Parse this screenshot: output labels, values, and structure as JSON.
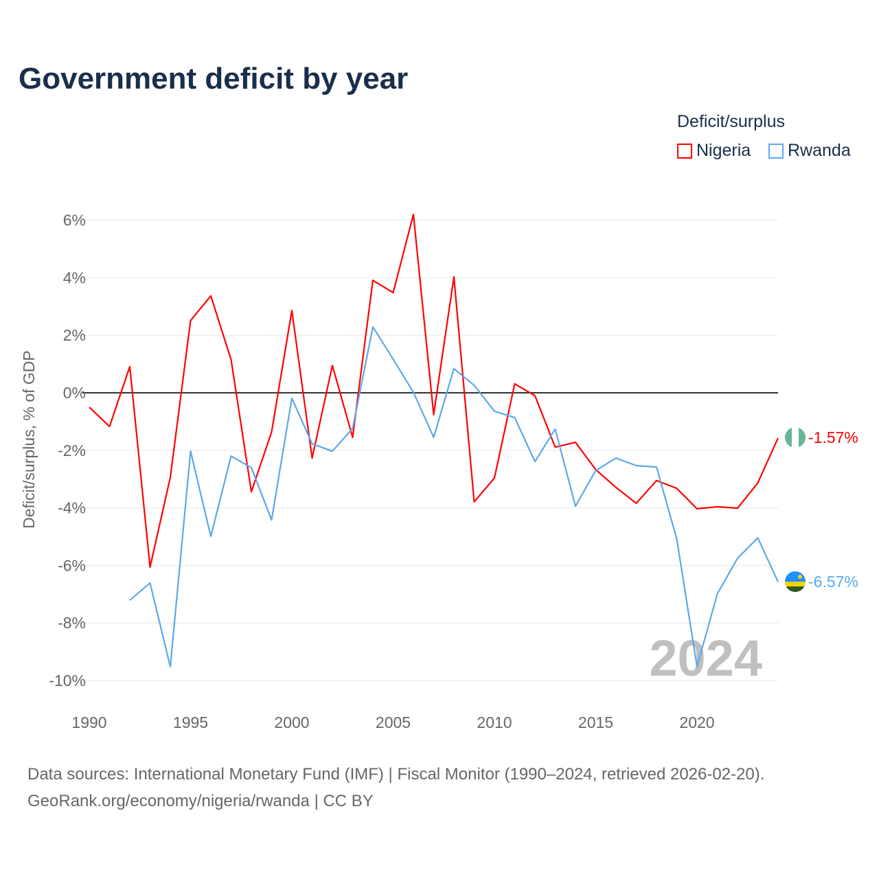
{
  "title": "Government deficit by year",
  "legend": {
    "title": "Deficit/surplus",
    "items": [
      "Nigeria",
      "Rwanda"
    ]
  },
  "source": {
    "line1": "Data sources: International Monetary Fund (IMF) | Fiscal Monitor (1990–2024, retrieved 2026-02-20).",
    "line2": "GeoRank.org/economy/nigeria/rwanda | CC BY"
  },
  "chart_data": {
    "type": "line",
    "title": "Government deficit by year",
    "ylabel": "Deficit/surplus, % of GDP",
    "xlabel": "",
    "xlim": [
      1990,
      2024
    ],
    "ylim": [
      -10,
      6.5
    ],
    "yticks": [
      6,
      4,
      2,
      0,
      -2,
      -4,
      -6,
      -8,
      -10
    ],
    "ytick_labels": [
      "6%",
      "4%",
      "2%",
      "0%",
      "-2%",
      "-4%",
      "-6%",
      "-8%",
      "-10%"
    ],
    "xticks": [
      1990,
      1995,
      2000,
      2005,
      2010,
      2015,
      2020
    ],
    "watermark": "2024",
    "legend_position": "top-right",
    "series": [
      {
        "name": "Nigeria",
        "color": "#ff0000",
        "end_label": "-1.57%",
        "x": [
          1990,
          1991,
          1992,
          1993,
          1994,
          1995,
          1996,
          1997,
          1998,
          1999,
          2000,
          2001,
          2002,
          2003,
          2004,
          2005,
          2006,
          2007,
          2008,
          2009,
          2010,
          2011,
          2012,
          2013,
          2014,
          2015,
          2016,
          2017,
          2018,
          2019,
          2020,
          2021,
          2022,
          2023,
          2024
        ],
        "values": [
          -0.5,
          -1.17,
          0.91,
          -6.06,
          -2.94,
          2.51,
          3.37,
          1.15,
          -3.44,
          -1.36,
          2.86,
          -2.27,
          0.95,
          -1.55,
          3.91,
          3.48,
          6.2,
          -0.76,
          4.03,
          -3.79,
          -2.96,
          0.31,
          -0.1,
          -1.89,
          -1.72,
          -2.67,
          -3.29,
          -3.84,
          -3.05,
          -3.32,
          -4.03,
          -3.96,
          -4.01,
          -3.13,
          -1.57
        ]
      },
      {
        "name": "Rwanda",
        "color": "#5ca8ea",
        "end_label": "-6.57%",
        "x": [
          1992,
          1993,
          1994,
          1995,
          1996,
          1997,
          1998,
          1999,
          2000,
          2001,
          2002,
          2003,
          2004,
          2005,
          2006,
          2007,
          2008,
          2009,
          2010,
          2011,
          2012,
          2013,
          2014,
          2015,
          2016,
          2017,
          2018,
          2019,
          2020,
          2021,
          2022,
          2023,
          2024
        ],
        "values": [
          -7.21,
          -6.61,
          -9.52,
          -2.03,
          -4.99,
          -2.2,
          -2.6,
          -4.42,
          -0.19,
          -1.77,
          -2.03,
          -1.24,
          2.29,
          1.17,
          0.02,
          -1.55,
          0.84,
          0.26,
          -0.64,
          -0.86,
          -2.39,
          -1.26,
          -3.94,
          -2.7,
          -2.27,
          -2.53,
          -2.58,
          -5.08,
          -9.52,
          -6.99,
          -5.75,
          -5.04,
          -6.57
        ]
      }
    ]
  }
}
